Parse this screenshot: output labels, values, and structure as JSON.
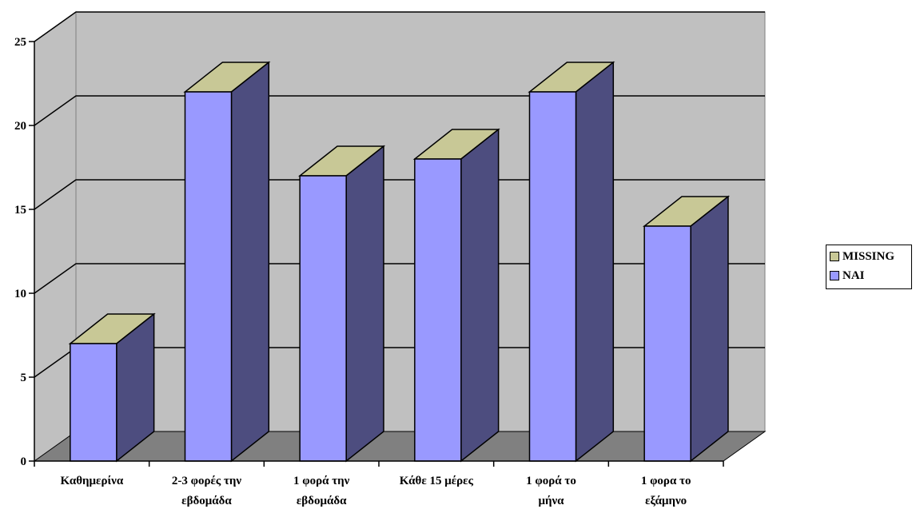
{
  "chart_data": {
    "type": "bar",
    "style": "3d-column",
    "categories": [
      [
        "Καθημερίνα"
      ],
      [
        "2-3 φορές την",
        "εβδομάδα"
      ],
      [
        "1 φορά την",
        "εβδομάδα"
      ],
      [
        "Κάθε 15 μέρες"
      ],
      [
        "1 φορά το",
        "μήνα"
      ],
      [
        "1 φορα το",
        "εξάμηνο"
      ]
    ],
    "series": [
      {
        "name": "MISSING",
        "values": [
          0,
          0,
          0,
          0,
          0,
          0
        ],
        "color": "#C8C896"
      },
      {
        "name": "ΝΑΙ",
        "values": [
          7,
          22,
          17,
          18,
          22,
          14
        ],
        "color": "#9999FF"
      }
    ],
    "ylim": [
      0,
      25
    ],
    "yticks": [
      0,
      5,
      10,
      15,
      20,
      25
    ],
    "grid": true,
    "legend_position": "right",
    "colors": {
      "bar_front": "#9999FF",
      "bar_side": "#4D4D7F",
      "bar_top": "#C8C896",
      "back_wall": "#C0C0C0",
      "floor": "#808080"
    }
  }
}
